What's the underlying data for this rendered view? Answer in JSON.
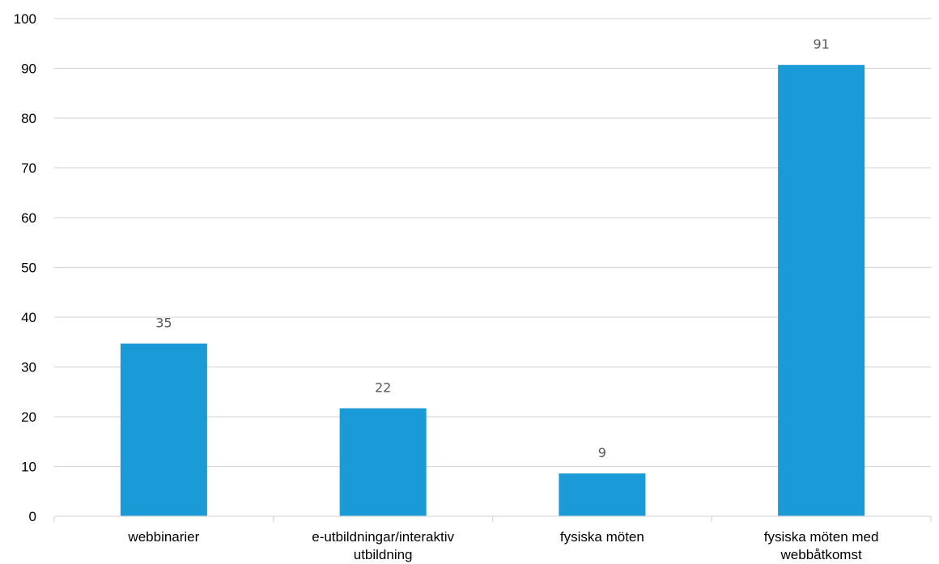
{
  "chart_data": {
    "type": "bar",
    "categories": [
      [
        "webbinarier"
      ],
      [
        "e-utbildningar/interaktiv",
        "utbildning"
      ],
      [
        "fysiska möten"
      ],
      [
        "fysiska möten med",
        "webbåtkomst"
      ]
    ],
    "values": [
      35,
      22,
      9,
      91
    ],
    "data_labels": [
      "35",
      "22",
      "9",
      "91"
    ],
    "bar_values": [
      34.7,
      21.7,
      8.6,
      90.7
    ],
    "ylim": [
      0,
      100
    ],
    "yticks": [
      "0",
      "10",
      "20",
      "30",
      "40",
      "50",
      "60",
      "70",
      "80",
      "90",
      "100"
    ],
    "grid": true,
    "legend": "none",
    "bar_color": "#1A9AD7",
    "grid_color": "#D9D9D9",
    "title": "",
    "xlabel": "",
    "ylabel": ""
  }
}
